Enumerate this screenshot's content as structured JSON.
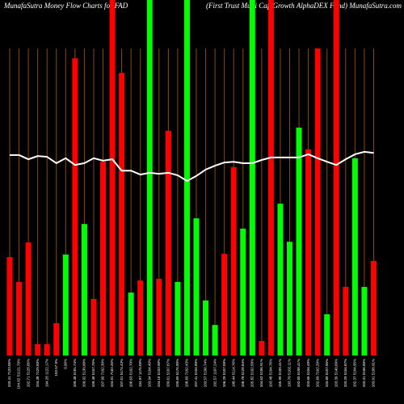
{
  "chart_data": {
    "type": "bar",
    "title": "MunafaSutra  Money Flow  Charts for FAD",
    "subtitle": "(First Trust Multi Cap Growth AlphaDEX Fund) MunafaSutra.com",
    "categories": [
      "103.41 7133.05%",
      "104.62 51121.79%",
      "102.71 5128.05%",
      "104.38 7129.50%",
      "104.28 1122.17%",
      "102.57 0%",
      "0.96%",
      "109.48 5181.74%",
      "109.92 5130.00%",
      "109.48 5107.76%",
      "107.99 7102.30%",
      "104.91 7162.26%",
      "107.51 5174.43%",
      "106.63 5102.70%",
      "104.97 1175.09%",
      "103.94 5104.40%",
      "104.16 5103.98%",
      "109.61 5107.87%",
      "109.69 5176.90%",
      "108.69 7102.43%",
      "107.41 5104.00%",
      "103.57 5106.74%",
      "102.57 1107.24%",
      "106.29 5107.09%",
      "108.44 5114.76%",
      "106.78 5128.84%",
      "105.82 5102.58%",
      "104.63 5106.91%",
      "103.48 5104.76%",
      "105.99 5109.41%",
      "103.70 5102.11%",
      "102.60 5108.41%",
      "103.66 5104.49%",
      "102.60 7102.20%",
      "103.89 5107.95%",
      "103.39 5140.09%",
      "103.29 5104.87%",
      "102.37 5104.95%",
      "103.31 5106.00%",
      "103.01 5108.91%"
    ],
    "values": [
      27.7,
      20.7,
      31.8,
      3.2,
      3.2,
      9.1,
      28.4,
      83.6,
      37,
      15.9,
      54.5,
      100,
      79.5,
      17.7,
      21.1,
      100,
      21.6,
      63.2,
      20.7,
      100,
      38.6,
      15.5,
      8.6,
      28.6,
      53,
      35.7,
      100,
      4.1,
      100,
      42.7,
      32,
      64.1,
      58,
      86.4,
      11.6,
      100,
      19.3,
      55.5,
      19.3,
      26.6
    ],
    "bar_colors": [
      "#ff0000",
      "#ff0000",
      "#ff0000",
      "#ff0000",
      "#ff0000",
      "#ff0000",
      "#00ff00",
      "#ff0000",
      "#00ff00",
      "#ff0000",
      "#ff0000",
      "#ff0000",
      "#ff0000",
      "#00ff00",
      "#ff0000",
      "#00ff00",
      "#ff0000",
      "#ff0000",
      "#00ff00",
      "#00ff00",
      "#00ff00",
      "#00ff00",
      "#00ff00",
      "#ff0000",
      "#ff0000",
      "#00ff00",
      "#00ff00",
      "#ff0000",
      "#ff0000",
      "#00ff00",
      "#00ff00",
      "#00ff00",
      "#ff0000",
      "#ff0000",
      "#00ff00",
      "#ff0000",
      "#ff0000",
      "#00ff00",
      "#00ff00",
      "#ff0000"
    ],
    "line_values": [
      56.4,
      56.4,
      55.2,
      56.1,
      55.9,
      54.1,
      55.5,
      53.6,
      54.1,
      55.5,
      54.8,
      55.2,
      52,
      52,
      50.9,
      51.4,
      51.1,
      51.4,
      50.7,
      49.1,
      50.5,
      52.3,
      53.4,
      54.3,
      54.5,
      54.1,
      54.1,
      55,
      55.7,
      55.7,
      55.7,
      55.7,
      56.6,
      55.5,
      54.5,
      53.6,
      55.2,
      56.6,
      57.3,
      57.0
    ],
    "line_color": "#ffffff",
    "ylim": [
      0,
      100
    ],
    "grid_color": "#8b4a00"
  }
}
